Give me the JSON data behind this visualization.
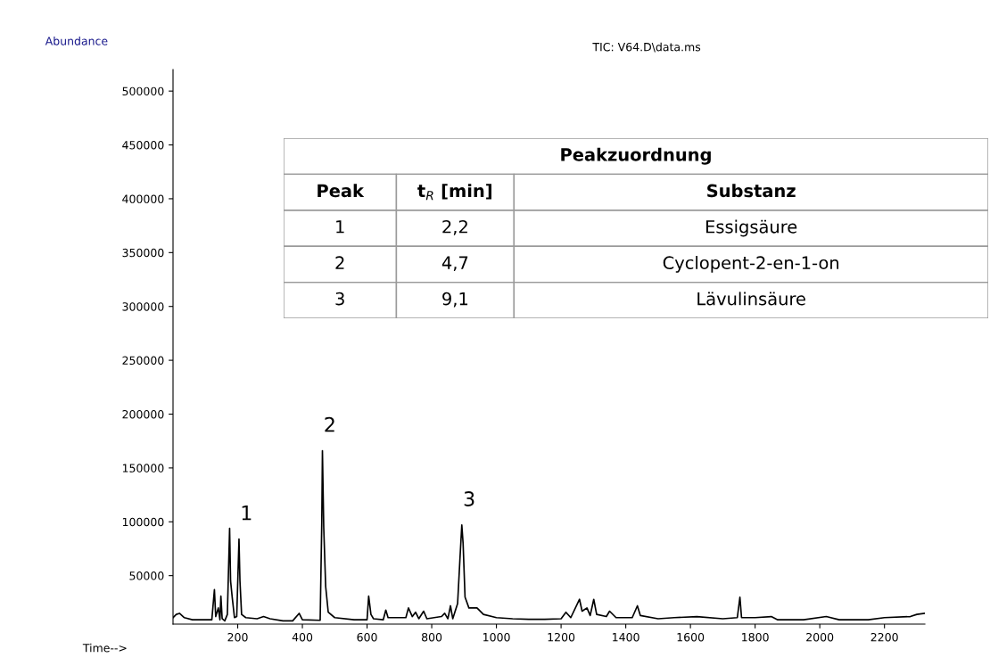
{
  "chart_data": {
    "type": "line",
    "title": "TIC: V64.D\\data.ms",
    "xlabel": "Time-->",
    "ylabel": "Abundance",
    "x": [
      0,
      10,
      20,
      35,
      60,
      120,
      128,
      132,
      140,
      145,
      148,
      152,
      160,
      168,
      175,
      178,
      183,
      190,
      197,
      204,
      207,
      212,
      225,
      260,
      280,
      300,
      340,
      370,
      390,
      400,
      455,
      460,
      462,
      466,
      472,
      480,
      500,
      560,
      600,
      605,
      612,
      620,
      650,
      658,
      665,
      720,
      728,
      740,
      750,
      760,
      775,
      785,
      830,
      840,
      850,
      858,
      865,
      880,
      887,
      893,
      897,
      903,
      915,
      940,
      960,
      1000,
      1050,
      1100,
      1150,
      1200,
      1215,
      1230,
      1257,
      1265,
      1280,
      1290,
      1301,
      1310,
      1340,
      1350,
      1370,
      1420,
      1436,
      1445,
      1500,
      1550,
      1620,
      1700,
      1745,
      1753,
      1758,
      1800,
      1850,
      1870,
      1950,
      2020,
      2060,
      2150,
      2200,
      2280,
      2300,
      2324
    ],
    "series": [
      {
        "color": "#000000",
        "values": [
          11000,
          14000,
          15000,
          11000,
          9000,
          9000,
          37000,
          12000,
          20000,
          9000,
          31000,
          10000,
          8000,
          14000,
          94000,
          45000,
          30000,
          11000,
          12000,
          83900,
          45000,
          14000,
          11000,
          10000,
          12000,
          10000,
          8000,
          8000,
          15000,
          9000,
          8500,
          100000,
          166000,
          95000,
          40000,
          16000,
          11000,
          9000,
          9000,
          31000,
          14000,
          10000,
          9000,
          18000,
          11000,
          11000,
          20000,
          12000,
          16000,
          10000,
          17000,
          10000,
          12000,
          15000,
          10000,
          22000,
          10000,
          24000,
          64000,
          97000,
          80000,
          30000,
          20000,
          20000,
          14000,
          11000,
          10000,
          9500,
          9500,
          10000,
          16000,
          11000,
          28000,
          17000,
          20000,
          13000,
          28000,
          14000,
          12000,
          17000,
          11000,
          11000,
          22000,
          13000,
          10000,
          11000,
          12000,
          10000,
          11000,
          30000,
          11000,
          11000,
          12000,
          9000,
          9000,
          12000,
          9000,
          9000,
          11000,
          12000,
          14000,
          15000
        ]
      }
    ],
    "xlim": [
      0,
      2325
    ],
    "ylim": [
      5000,
      520000
    ],
    "xticks": [
      200,
      400,
      600,
      800,
      1000,
      1200,
      1400,
      1600,
      1800,
      2000,
      2200
    ],
    "yticks": [
      50000,
      100000,
      150000,
      200000,
      250000,
      300000,
      350000,
      400000,
      450000,
      500000
    ],
    "grid": false,
    "legend": false,
    "annotations": [
      {
        "text": "1",
        "x": 204,
        "y": 84000
      },
      {
        "text": "2",
        "x": 462,
        "y": 166000
      },
      {
        "text": "3",
        "x": 893,
        "y": 97000
      },
      "Peakzuordnung",
      "Peak",
      "t$_{R}$ [min]",
      "Substanz",
      "1",
      "2,2",
      "Essigsäure",
      "2",
      "4,7",
      "Cyclopent-2-en-1-on",
      "3",
      "9,1",
      "Lävulinsäure"
    ]
  }
}
